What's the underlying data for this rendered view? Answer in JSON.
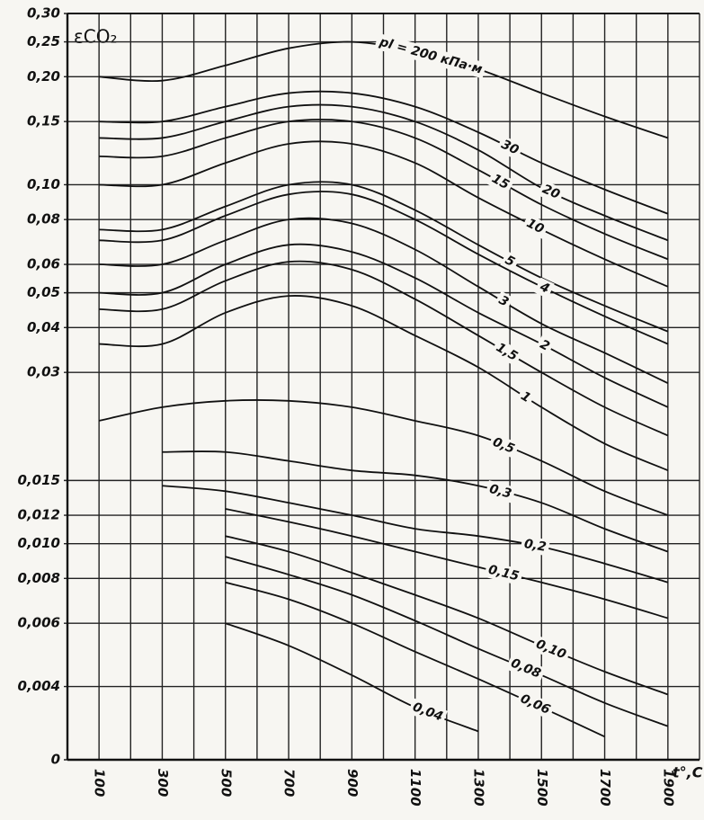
{
  "chart_data": {
    "type": "line",
    "y_label": "εCO₂",
    "x_label": "t°,C",
    "x": [
      100,
      300,
      500,
      700,
      900,
      1100,
      1300,
      1500,
      1700,
      1900
    ],
    "xlim": [
      0,
      2000
    ],
    "xticks": [
      100,
      300,
      500,
      700,
      900,
      1100,
      1300,
      1500,
      1700,
      1900
    ],
    "xgrid": [
      200,
      400,
      600,
      800,
      1000,
      1200,
      1400,
      1600,
      1800,
      2000
    ],
    "ylim": [
      0.0025,
      0.3
    ],
    "log_y": true,
    "grid": true,
    "yticks": [
      {
        "value": 0.3,
        "label": "0,30"
      },
      {
        "value": 0.25,
        "label": "0,25"
      },
      {
        "value": 0.2,
        "label": "0,20"
      },
      {
        "value": 0.15,
        "label": "0,15"
      },
      {
        "value": 0.1,
        "label": "0,10"
      },
      {
        "value": 0.08,
        "label": "0,08"
      },
      {
        "value": 0.06,
        "label": "0,06"
      },
      {
        "value": 0.05,
        "label": "0,05"
      },
      {
        "value": 0.04,
        "label": "0,04"
      },
      {
        "value": 0.03,
        "label": "0,03"
      },
      {
        "value": 0.012,
        "label": "0,012"
      },
      {
        "value": 0.015,
        "label": "0,015"
      },
      {
        "value": 0.01,
        "label": "0,010"
      },
      {
        "value": 0.008,
        "label": "0,008"
      },
      {
        "value": 0.006,
        "label": "0,006"
      },
      {
        "value": 0.004,
        "label": "0,004"
      },
      0
    ],
    "series": [
      {
        "name": "pl = 200 кПа·м",
        "color": "#111111",
        "values": [
          0.2,
          0.195,
          0.215,
          0.24,
          0.25,
          0.235,
          0.21,
          0.18,
          0.155,
          0.135
        ]
      },
      {
        "name": "30",
        "color": "#111111",
        "values": [
          0.15,
          0.15,
          0.165,
          0.18,
          0.18,
          0.165,
          0.14,
          0.115,
          0.097,
          0.083
        ]
      },
      {
        "name": "20",
        "color": "#111111",
        "values": [
          0.135,
          0.135,
          0.15,
          0.165,
          0.165,
          0.15,
          0.125,
          0.098,
          0.082,
          0.07
        ]
      },
      {
        "name": "15",
        "color": "#111111",
        "values": [
          0.12,
          0.12,
          0.135,
          0.15,
          0.15,
          0.135,
          0.11,
          0.088,
          0.073,
          0.062
        ]
      },
      {
        "name": "10",
        "color": "#111111",
        "values": [
          0.1,
          0.1,
          0.115,
          0.13,
          0.13,
          0.115,
          0.092,
          0.075,
          0.062,
          0.052
        ]
      },
      {
        "name": "5",
        "color": "#111111",
        "values": [
          0.075,
          0.075,
          0.087,
          0.1,
          0.1,
          0.085,
          0.068,
          0.055,
          0.046,
          0.039
        ]
      },
      {
        "name": "4",
        "color": "#111111",
        "values": [
          0.07,
          0.07,
          0.082,
          0.094,
          0.094,
          0.08,
          0.064,
          0.052,
          0.043,
          0.036
        ]
      },
      {
        "name": "3",
        "color": "#111111",
        "values": [
          0.06,
          0.06,
          0.07,
          0.08,
          0.078,
          0.066,
          0.052,
          0.041,
          0.034,
          0.028
        ]
      },
      {
        "name": "2",
        "color": "#111111",
        "values": [
          0.05,
          0.05,
          0.06,
          0.068,
          0.065,
          0.055,
          0.044,
          0.036,
          0.029,
          0.024
        ]
      },
      {
        "name": "1,5",
        "color": "#111111",
        "values": [
          0.045,
          0.045,
          0.054,
          0.061,
          0.058,
          0.048,
          0.038,
          0.03,
          0.024,
          0.02
        ]
      },
      {
        "name": "1",
        "color": "#111111",
        "values": [
          0.036,
          0.036,
          0.044,
          0.049,
          0.046,
          0.038,
          0.031,
          0.024,
          0.019,
          0.016
        ]
      },
      {
        "name": "0,5",
        "color": "#111111",
        "values": [
          0.022,
          0.024,
          0.025,
          0.025,
          0.024,
          0.022,
          0.02,
          0.017,
          0.014,
          0.012
        ]
      },
      {
        "name": "0,3",
        "color": "#111111",
        "values": [
          null,
          0.018,
          0.018,
          0.017,
          0.016,
          0.0155,
          0.0145,
          0.013,
          0.011,
          0.0095
        ]
      },
      {
        "name": "0,2",
        "color": "#111111",
        "values": [
          null,
          0.0145,
          0.014,
          0.013,
          0.012,
          0.011,
          0.0105,
          0.0098,
          0.0088,
          0.0078
        ]
      },
      {
        "name": "0,15",
        "color": "#111111",
        "values": [
          null,
          null,
          0.0125,
          0.0115,
          0.0105,
          0.0095,
          0.0086,
          0.0078,
          0.007,
          0.0062
        ]
      },
      {
        "name": "0,10",
        "color": "#111111",
        "values": [
          null,
          null,
          0.0105,
          0.0095,
          0.0083,
          0.0072,
          0.0062,
          0.0052,
          0.0044,
          0.0038
        ]
      },
      {
        "name": "0,08",
        "color": "#111111",
        "values": [
          null,
          null,
          0.0092,
          0.0082,
          0.0072,
          0.0061,
          0.0051,
          0.0043,
          0.0036,
          0.0031
        ]
      },
      {
        "name": "0,06",
        "color": "#111111",
        "values": [
          null,
          null,
          0.0078,
          0.007,
          0.006,
          0.005,
          0.0042,
          0.0035,
          0.0029,
          null
        ]
      },
      {
        "name": "0,04",
        "color": "#111111",
        "values": [
          null,
          null,
          0.006,
          0.0052,
          0.0043,
          0.0035,
          0.003,
          null,
          null,
          null
        ]
      }
    ]
  }
}
